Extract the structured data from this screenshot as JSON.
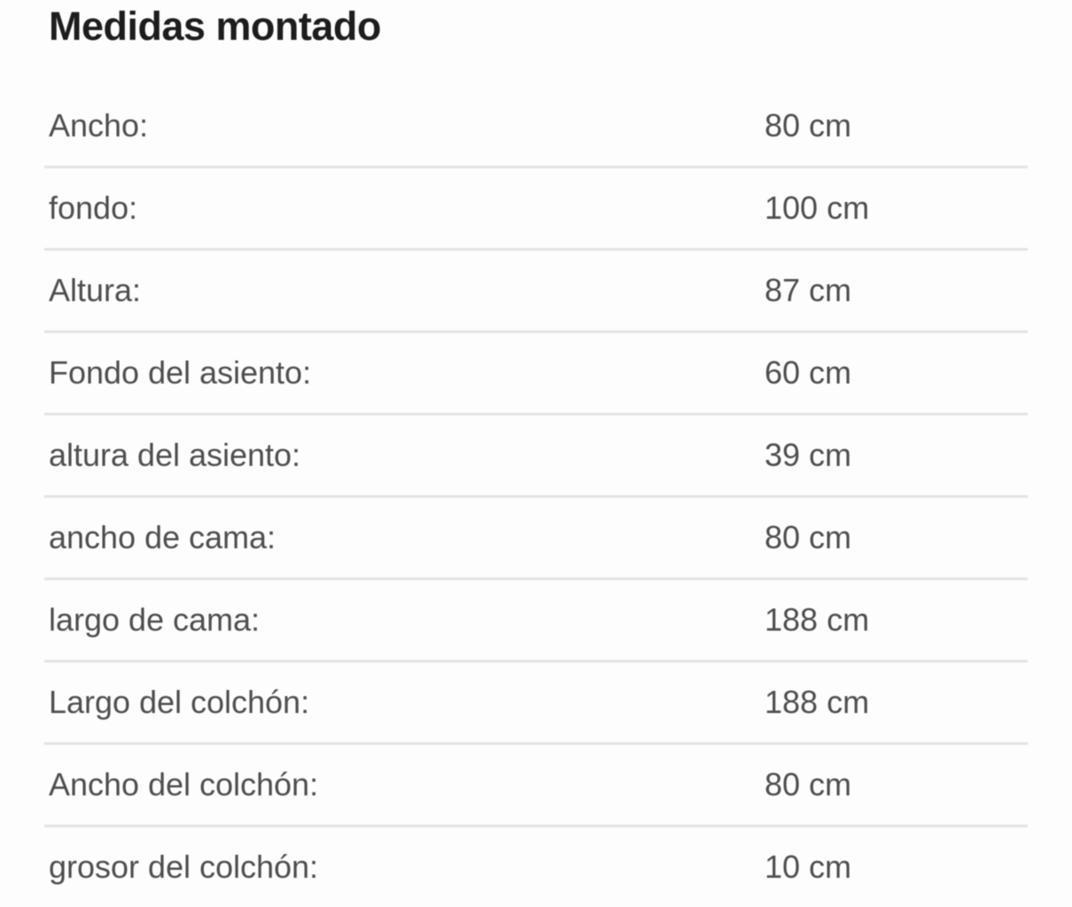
{
  "section": {
    "title": "Medidas montado"
  },
  "measurements": {
    "rows": [
      {
        "label": "Ancho:",
        "value": "80 cm"
      },
      {
        "label": "fondo:",
        "value": "100 cm"
      },
      {
        "label": "Altura:",
        "value": "87 cm"
      },
      {
        "label": "Fondo del asiento:",
        "value": "60 cm"
      },
      {
        "label": "altura del asiento:",
        "value": "39 cm"
      },
      {
        "label": "ancho de cama:",
        "value": "80 cm"
      },
      {
        "label": "largo de cama:",
        "value": "188 cm"
      },
      {
        "label": "Largo del colchón:",
        "value": "188 cm"
      },
      {
        "label": "Ancho del colchón:",
        "value": "80 cm"
      },
      {
        "label": "grosor del colchón:",
        "value": "10 cm"
      }
    ]
  },
  "colors": {
    "background": "#fdfdfd",
    "title_text": "#1d1d1d",
    "row_text": "#4e4e4e",
    "divider": "#e3e3e3"
  }
}
